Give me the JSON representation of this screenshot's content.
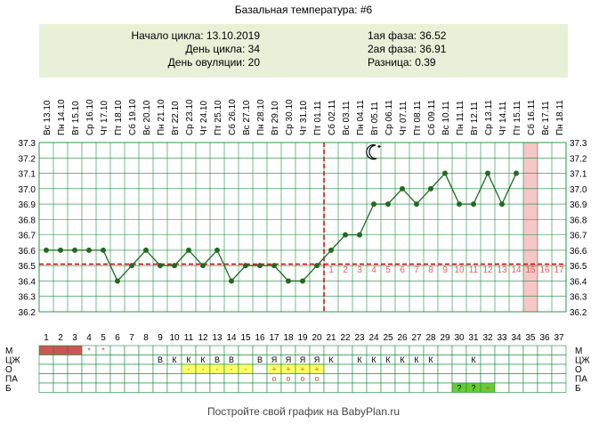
{
  "title": "Базальная температура: #6",
  "info": {
    "cycle_start": "Начало цикла: 13.10.2019",
    "cycle_day": "День цикла: 34",
    "ovulation_day": "День овуляции: 20",
    "phase1": "1ая фаза: 36.52",
    "phase2": "2ая фаза: 36.91",
    "difference": "Разница: 0.39"
  },
  "footer": "Постройте свой график на BabyPlan.ru",
  "colors": {
    "grid": "#1a8a3a",
    "line": "#1f6b1f",
    "point": "#1f6b1f",
    "coverline": "#d40000",
    "highlight_column": "#f7c6c6",
    "info_bg": "#e8f1d8",
    "menstruation": "#cc5555",
    "yellow": "#ffff66",
    "green_cell": "#66cc33"
  },
  "chart_data": {
    "type": "line",
    "dates": [
      "Вс 13.10",
      "Пн 14.10",
      "Вт 15.10",
      "Ср 16.10",
      "Чт 17.10",
      "Пт 18.10",
      "Сб 19.10",
      "Вс 20.10",
      "Пн 21.10",
      "Вт 22.10",
      "Ср 23.10",
      "Чт 24.10",
      "Пт 25.10",
      "Сб 26.10",
      "Вс 27.10",
      "Пн 28.10",
      "Вт 29.10",
      "Ср 30.10",
      "Чт 31.10",
      "Пт 01.11",
      "Сб 02.11",
      "Вс 03.11",
      "Пн 04.11",
      "Вт 05.11",
      "Ср 06.11",
      "Чт 07.11",
      "Пт 08.11",
      "Сб 09.11",
      "Вс 10.11",
      "Пн 11.11",
      "Вт 12.11",
      "Ср 13.11",
      "Чт 14.11",
      "Пт 15.11",
      "Сб 16.11",
      "Вс 17.11",
      "Пн 18.11"
    ],
    "days": [
      1,
      2,
      3,
      4,
      5,
      6,
      7,
      8,
      9,
      10,
      11,
      12,
      13,
      14,
      15,
      16,
      17,
      18,
      19,
      20,
      21,
      22,
      23,
      24,
      25,
      26,
      27,
      28,
      29,
      30,
      31,
      32,
      33,
      34,
      35,
      36,
      37
    ],
    "temperatures": [
      36.6,
      36.6,
      36.6,
      36.6,
      36.6,
      36.4,
      36.5,
      36.6,
      36.5,
      36.5,
      36.6,
      36.5,
      36.6,
      36.4,
      36.5,
      36.5,
      36.5,
      36.4,
      36.4,
      36.5,
      36.6,
      36.7,
      36.7,
      36.9,
      36.9,
      37.0,
      36.9,
      37.0,
      37.1,
      36.9,
      36.9,
      37.1,
      36.9,
      37.1,
      null,
      null,
      null
    ],
    "ylim": [
      36.2,
      37.3
    ],
    "yticks": [
      "36.2",
      "36.3",
      "36.4",
      "36.5",
      "36.6",
      "36.7",
      "36.8",
      "36.9",
      "37.0",
      "37.1",
      "37.2",
      "37.3"
    ],
    "coverline": 36.51,
    "ovulation_day": 20,
    "luteal_labels": [
      "1",
      "2",
      "3",
      "4",
      "5",
      "6",
      "7",
      "8",
      "9",
      "10",
      "11",
      "12",
      "13",
      "14",
      "15",
      "16",
      "17"
    ],
    "highlight_day": 35,
    "rows": [
      {
        "label": "М",
        "cells": {
          "1": "fill",
          "2": "fill",
          "3": "fill",
          "4": "*",
          "5": "*"
        }
      },
      {
        "label": "ЦЖ",
        "cells": {
          "9": "В",
          "10": "К",
          "11": "К",
          "12": "К",
          "13": "В",
          "14": "В",
          "16": "В",
          "17": "Я",
          "18": "Я",
          "19": "Я",
          "20": "Я",
          "21": "К",
          "23": "К",
          "24": "К",
          "25": "К",
          "26": "К",
          "27": "К",
          "28": "К",
          "31": "К"
        }
      },
      {
        "label": "О",
        "cells": {
          "11": "-",
          "12": "-",
          "13": "-",
          "14": "-",
          "15": "-",
          "17": "+",
          "18": "+",
          "19": "+",
          "20": "+"
        }
      },
      {
        "label": "ПА",
        "cells": {
          "17": "o",
          "18": "o",
          "19": "o",
          "20": "o"
        }
      },
      {
        "label": "Б",
        "cells": {
          "30": "?",
          "31": "?",
          "32": "+"
        }
      }
    ]
  }
}
